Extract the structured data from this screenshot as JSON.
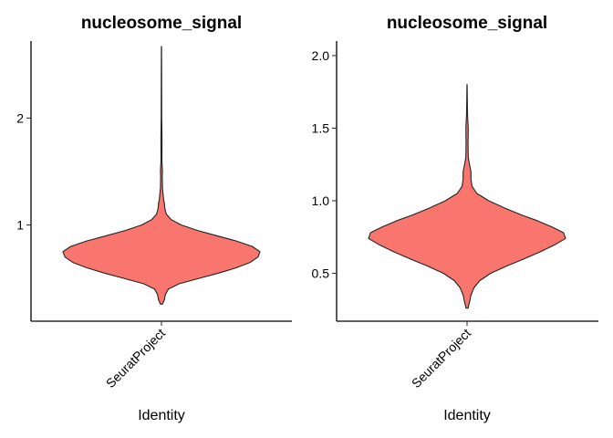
{
  "chart_data": [
    {
      "type": "violin",
      "title": "nucleosome_signal",
      "xlabel": "Identity",
      "ylabel": "",
      "categories": [
        "SeuratProject"
      ],
      "fill_color": "#F8766D",
      "ylim": [
        0.1,
        2.72
      ],
      "yticks": [
        1,
        2
      ],
      "ytick_labels": [
        "1",
        "2"
      ],
      "density_profile": [
        {
          "y": 0.26,
          "width": 0.01
        },
        {
          "y": 0.3,
          "width": 0.03
        },
        {
          "y": 0.35,
          "width": 0.04
        },
        {
          "y": 0.4,
          "width": 0.07
        },
        {
          "y": 0.45,
          "width": 0.18
        },
        {
          "y": 0.5,
          "width": 0.38
        },
        {
          "y": 0.55,
          "width": 0.58
        },
        {
          "y": 0.6,
          "width": 0.76
        },
        {
          "y": 0.65,
          "width": 0.9
        },
        {
          "y": 0.7,
          "width": 0.98
        },
        {
          "y": 0.75,
          "width": 1.0
        },
        {
          "y": 0.8,
          "width": 0.92
        },
        {
          "y": 0.85,
          "width": 0.76
        },
        {
          "y": 0.9,
          "width": 0.56
        },
        {
          "y": 0.95,
          "width": 0.36
        },
        {
          "y": 1.0,
          "width": 0.2
        },
        {
          "y": 1.05,
          "width": 0.1
        },
        {
          "y": 1.1,
          "width": 0.05
        },
        {
          "y": 1.15,
          "width": 0.035
        },
        {
          "y": 1.2,
          "width": 0.03
        },
        {
          "y": 1.25,
          "width": 0.02
        },
        {
          "y": 1.35,
          "width": 0.01
        },
        {
          "y": 1.45,
          "width": 0.008
        },
        {
          "y": 1.5,
          "width": 0.01
        },
        {
          "y": 1.6,
          "width": 0.005
        },
        {
          "y": 1.8,
          "width": 0.006
        },
        {
          "y": 2.0,
          "width": 0.003
        },
        {
          "y": 2.4,
          "width": 0.002
        },
        {
          "y": 2.67,
          "width": 0.001
        }
      ]
    },
    {
      "type": "violin",
      "title": "nucleosome_signal",
      "xlabel": "Identity",
      "ylabel": "",
      "categories": [
        "SeuratProject"
      ],
      "fill_color": "#F8766D",
      "ylim": [
        0.17,
        2.1
      ],
      "yticks": [
        0.5,
        1.0,
        1.5,
        2.0
      ],
      "ytick_labels": [
        "0.5",
        "1.0",
        "1.5",
        "2.0"
      ],
      "density_profile": [
        {
          "y": 0.26,
          "width": 0.01
        },
        {
          "y": 0.3,
          "width": 0.025
        },
        {
          "y": 0.35,
          "width": 0.04
        },
        {
          "y": 0.4,
          "width": 0.07
        },
        {
          "y": 0.45,
          "width": 0.13
        },
        {
          "y": 0.5,
          "width": 0.24
        },
        {
          "y": 0.55,
          "width": 0.4
        },
        {
          "y": 0.6,
          "width": 0.58
        },
        {
          "y": 0.65,
          "width": 0.75
        },
        {
          "y": 0.7,
          "width": 0.9
        },
        {
          "y": 0.74,
          "width": 1.0
        },
        {
          "y": 0.78,
          "width": 0.98
        },
        {
          "y": 0.82,
          "width": 0.86
        },
        {
          "y": 0.86,
          "width": 0.72
        },
        {
          "y": 0.9,
          "width": 0.56
        },
        {
          "y": 0.95,
          "width": 0.38
        },
        {
          "y": 1.0,
          "width": 0.22
        },
        {
          "y": 1.05,
          "width": 0.1
        },
        {
          "y": 1.1,
          "width": 0.05
        },
        {
          "y": 1.15,
          "width": 0.04
        },
        {
          "y": 1.2,
          "width": 0.04
        },
        {
          "y": 1.25,
          "width": 0.025
        },
        {
          "y": 1.3,
          "width": 0.012
        },
        {
          "y": 1.4,
          "width": 0.01
        },
        {
          "y": 1.5,
          "width": 0.012
        },
        {
          "y": 1.6,
          "width": 0.005
        },
        {
          "y": 1.8,
          "width": 0.001
        }
      ]
    }
  ]
}
